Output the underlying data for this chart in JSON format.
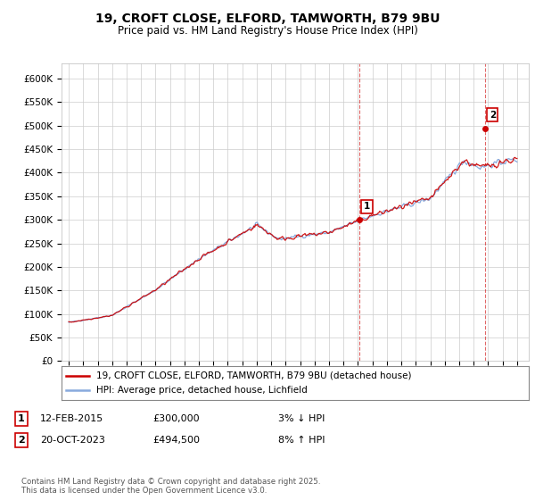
{
  "title": "19, CROFT CLOSE, ELFORD, TAMWORTH, B79 9BU",
  "subtitle": "Price paid vs. HM Land Registry's House Price Index (HPI)",
  "ylabel_ticks": [
    "£0",
    "£50K",
    "£100K",
    "£150K",
    "£200K",
    "£250K",
    "£300K",
    "£350K",
    "£400K",
    "£450K",
    "£500K",
    "£550K",
    "£600K"
  ],
  "ylim": [
    0,
    630000
  ],
  "yticks": [
    0,
    50000,
    100000,
    150000,
    200000,
    250000,
    300000,
    350000,
    400000,
    450000,
    500000,
    550000,
    600000
  ],
  "xlim_start": 1994.5,
  "xlim_end": 2026.8,
  "sale1_x": 2015.12,
  "sale1_y": 300000,
  "sale1_label": "1",
  "sale2_x": 2023.8,
  "sale2_y": 494500,
  "sale2_label": "2",
  "red_line_color": "#cc0000",
  "blue_line_color": "#88aadd",
  "marker_color": "#cc0000",
  "vline_color": "#cc0000",
  "grid_color": "#cccccc",
  "bg_color": "#ffffff",
  "legend_line1": "19, CROFT CLOSE, ELFORD, TAMWORTH, B79 9BU (detached house)",
  "legend_line2": "HPI: Average price, detached house, Lichfield",
  "annotation1_date": "12-FEB-2015",
  "annotation1_price": "£300,000",
  "annotation1_hpi": "3% ↓ HPI",
  "annotation2_date": "20-OCT-2023",
  "annotation2_price": "£494,500",
  "annotation2_hpi": "8% ↑ HPI",
  "footer": "Contains HM Land Registry data © Crown copyright and database right 2025.\nThis data is licensed under the Open Government Licence v3.0.",
  "title_fontsize": 10,
  "subtitle_fontsize": 8.5,
  "tick_fontsize": 7.5,
  "legend_fontsize": 7.5,
  "annotation_fontsize": 8
}
